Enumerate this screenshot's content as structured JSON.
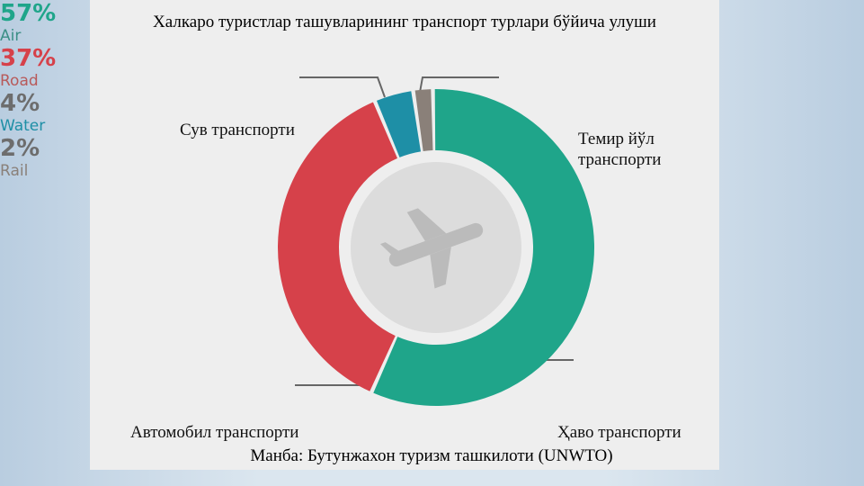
{
  "chart_data": {
    "type": "pie",
    "title": "Халкаро туристлар ташувларининг транспорт турлари бўйича улуши",
    "source": "Манба: Бутунжахон туризм ташкилоти (UNWTO)",
    "categories": [
      "Air",
      "Road",
      "Water",
      "Rail"
    ],
    "captions": [
      "Ҳаво транспорти",
      "Автомобил транспорти",
      "Сув транспорти",
      "Темир йўл транспорти"
    ],
    "values": [
      57,
      37,
      4,
      2
    ],
    "value_labels": [
      "57%",
      "37%",
      "4%",
      "2%"
    ],
    "colors": [
      "#1fa58a",
      "#d6414a",
      "#1e8fa6",
      "#8a8079"
    ],
    "donut": true
  }
}
